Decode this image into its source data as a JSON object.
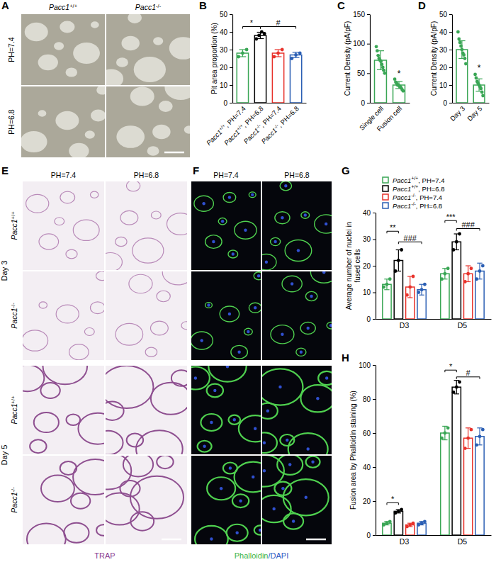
{
  "image_panels": [
    {
      "panel": "A",
      "column_labels": [
        "Pacc1+/+",
        "Pacc1-/-"
      ],
      "row_labels": [
        "PH=7.4",
        "PH=6.8"
      ]
    },
    {
      "panel": "E",
      "column_labels": [
        "PH=7.4",
        "PH=6.8"
      ],
      "row_groups": [
        "Day 3",
        "Day 5"
      ],
      "row_labels": [
        "Pacc1+/+",
        "Pacc1-/-"
      ],
      "caption": "TRAP"
    },
    {
      "panel": "F",
      "column_labels": [
        "PH=7.4",
        "PH=6.8"
      ],
      "caption": "Phalloidin/DAPI"
    }
  ],
  "chart_data": [
    {
      "panel": "B",
      "type": "bar",
      "y_label": "Pit area proportion (%)",
      "categories": [
        "Pacc1+/+, PH=7.4",
        "Pacc1+/+, PH=6.8",
        "Pacc1-/-, PH=7.4",
        "Pacc1-/-, PH=6.8"
      ],
      "values": [
        28,
        38,
        28,
        27
      ],
      "errors": [
        2,
        1.8,
        2,
        1.5
      ],
      "points": [
        [
          26,
          28,
          30
        ],
        [
          36,
          38,
          40,
          39
        ],
        [
          26,
          28,
          30
        ],
        [
          25,
          27,
          28
        ]
      ],
      "colors": [
        "#3aa655",
        "#000000",
        "#e8322b",
        "#2b5fb4"
      ],
      "ylim": [
        0,
        50
      ],
      "yticks": [
        0,
        10,
        20,
        30,
        40,
        50
      ],
      "grid": false,
      "annotations": [
        {
          "text": "*",
          "from": 0,
          "to": 1,
          "y": 43
        },
        {
          "text": "#",
          "from": 1,
          "to": 3,
          "y": 43
        }
      ]
    },
    {
      "panel": "C",
      "type": "bar",
      "y_label": "Current Density (pA/pF)",
      "categories": [
        "Single cell",
        "Fusion cell"
      ],
      "values": [
        72,
        30
      ],
      "errors": [
        16,
        6
      ],
      "points": [
        [
          95,
          88,
          80,
          75,
          72,
          70,
          65,
          60,
          55,
          50
        ],
        [
          40,
          35,
          33,
          30,
          30,
          28,
          27,
          25,
          22,
          20
        ]
      ],
      "color": "#3aa655",
      "ylim": [
        0,
        150
      ],
      "yticks": [
        0,
        50,
        100,
        150
      ],
      "grid": false,
      "annotations": [
        {
          "text": "*",
          "at": 1,
          "y": 45
        }
      ]
    },
    {
      "panel": "D",
      "type": "bar",
      "y_label": "Current Density (pA/pF)",
      "categories": [
        "Day 3",
        "Day 5"
      ],
      "values": [
        30,
        10
      ],
      "errors": [
        5,
        3.5
      ],
      "points": [
        [
          40,
          36,
          34,
          32,
          30,
          28,
          27,
          25,
          22
        ],
        [
          16,
          14,
          12,
          11,
          10,
          9,
          8,
          6,
          4
        ]
      ],
      "color": "#3aa655",
      "ylim": [
        0,
        50
      ],
      "yticks": [
        0,
        10,
        20,
        30,
        40,
        50
      ],
      "grid": false,
      "annotations": [
        {
          "text": "*",
          "at": 1,
          "y": 18
        }
      ]
    },
    {
      "panel": "G",
      "type": "bar",
      "y_label": "Average number of nuclei in fused cells",
      "categories": [
        "D3",
        "D5"
      ],
      "series": [
        {
          "name": "Pacc1+/+, PH=7.4",
          "color": "#3aa655",
          "values": [
            13,
            17
          ],
          "errors": [
            2,
            2
          ],
          "points": [
            [
              12,
              13,
              15
            ],
            [
              15,
              17,
              19
            ]
          ]
        },
        {
          "name": "Pacc1+/+, PH=6.8",
          "color": "#000000",
          "values": [
            22,
            29
          ],
          "errors": [
            4,
            3
          ],
          "points": [
            [
              18,
              22,
              26
            ],
            [
              26,
              29,
              32
            ]
          ]
        },
        {
          "name": "Pacc1-/-, PH=7.4",
          "color": "#e8322b",
          "values": [
            12,
            17
          ],
          "errors": [
            4,
            3
          ],
          "points": [
            [
              9,
              12,
              16
            ],
            [
              14,
              17,
              19
            ]
          ]
        },
        {
          "name": "Pacc1-/-, PH=6.8",
          "color": "#2b5fb4",
          "values": [
            11,
            18
          ],
          "errors": [
            2,
            3
          ],
          "points": [
            [
              10,
              11,
              13
            ],
            [
              15,
              18,
              20
            ]
          ]
        }
      ],
      "ylim": [
        0,
        40
      ],
      "yticks": [
        0,
        10,
        20,
        30,
        40
      ],
      "grid": false,
      "legend": "top",
      "annotations": [
        {
          "text": "**",
          "group": 0,
          "from": 0,
          "to": 1,
          "y": 33
        },
        {
          "text": "###",
          "group": 0,
          "from": 1,
          "to": 3,
          "y": 29
        },
        {
          "text": "***",
          "group": 1,
          "from": 0,
          "to": 1,
          "y": 37
        },
        {
          "text": "###",
          "group": 1,
          "from": 1,
          "to": 3,
          "y": 34
        }
      ]
    },
    {
      "panel": "H",
      "type": "bar",
      "y_label": "Fusion area by Phalloidin staining (%)",
      "categories": [
        "D3",
        "D5"
      ],
      "series": [
        {
          "name": "Pacc1+/+, PH=7.4",
          "color": "#3aa655",
          "values": [
            7,
            60
          ],
          "errors": [
            1,
            4
          ],
          "points": [
            [
              6,
              7,
              8
            ],
            [
              57,
              60,
              63
            ]
          ]
        },
        {
          "name": "Pacc1+/+, PH=6.8",
          "color": "#000000",
          "values": [
            14,
            87
          ],
          "errors": [
            1,
            4
          ],
          "points": [
            [
              13,
              14,
              15
            ],
            [
              84,
              87,
              90
            ]
          ]
        },
        {
          "name": "Pacc1-/-, PH=7.4",
          "color": "#e8322b",
          "values": [
            6,
            57
          ],
          "errors": [
            1,
            6
          ],
          "points": [
            [
              5,
              6,
              7
            ],
            [
              51,
              57,
              62
            ]
          ]
        },
        {
          "name": "Pacc1-/-, PH=6.8",
          "color": "#2b5fb4",
          "values": [
            7,
            58
          ],
          "errors": [
            1,
            5
          ],
          "points": [
            [
              6,
              7,
              8
            ],
            [
              53,
              58,
              62
            ]
          ]
        }
      ],
      "ylim": [
        0,
        100
      ],
      "yticks": [
        0,
        20,
        40,
        60,
        80,
        100
      ],
      "grid": false,
      "annotations": [
        {
          "text": "*",
          "group": 0,
          "from": 0,
          "to": 1,
          "y": 19
        },
        {
          "text": "*",
          "group": 1,
          "from": 0,
          "to": 1,
          "y": 97
        },
        {
          "text": "#",
          "group": 1,
          "from": 1,
          "to": 3,
          "y": 93
        }
      ]
    }
  ]
}
